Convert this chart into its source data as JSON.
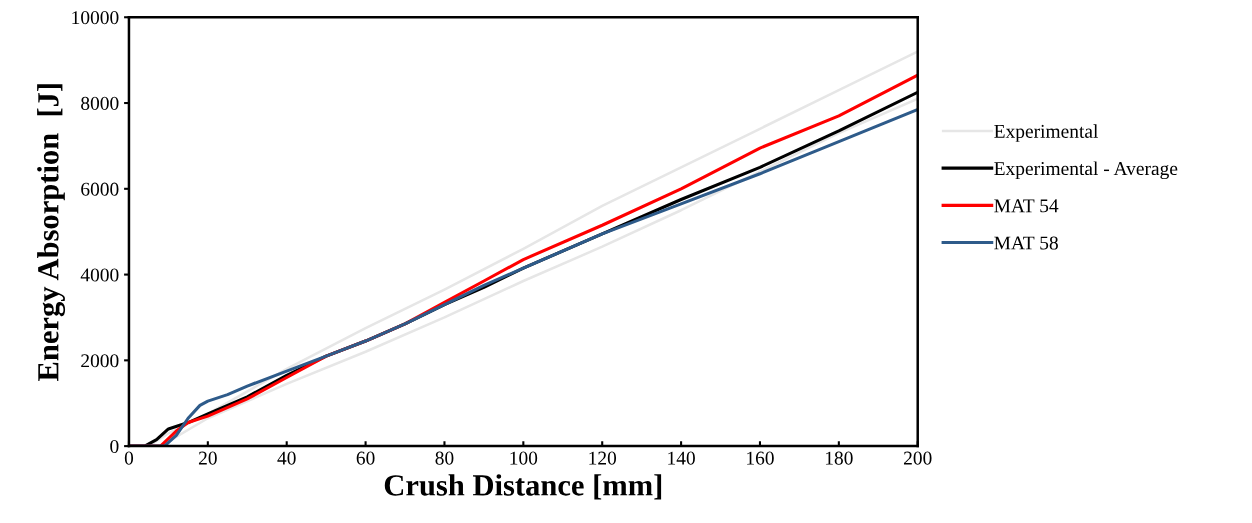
{
  "chart_data": {
    "type": "line",
    "xlabel": "Crush Distance [mm]",
    "ylabel": "Energy Absorption  [J]",
    "xlim": [
      0,
      200
    ],
    "xticks": [
      0,
      20,
      40,
      60,
      80,
      100,
      120,
      140,
      160,
      180,
      200
    ],
    "ylim": [
      0,
      10000
    ],
    "yticks": [
      0,
      2000,
      4000,
      6000,
      8000,
      10000
    ],
    "grid": false,
    "legend": "right",
    "line_style": "solid",
    "marker": "none",
    "series": [
      {
        "name": "Experimental",
        "color": "#e6e6e6",
        "x": [
          0,
          5,
          10,
          20,
          40,
          60,
          80,
          100,
          120,
          140,
          160,
          180,
          200
        ],
        "values": [
          0,
          0,
          300,
          750,
          1800,
          2750,
          3650,
          4600,
          5600,
          6500,
          7400,
          8300,
          9200
        ]
      },
      {
        "color": "#e6e6e6",
        "x": [
          0,
          8,
          20,
          40,
          60,
          80,
          100,
          120,
          140,
          160,
          180,
          200
        ],
        "values": [
          0,
          0,
          650,
          1450,
          2200,
          3000,
          3850,
          4650,
          5500,
          6400,
          7300,
          8100
        ]
      },
      {
        "name": "Experimental - Average",
        "color": "#000000",
        "x": [
          0,
          4,
          7,
          10,
          15,
          20,
          30,
          40,
          50,
          60,
          70,
          80,
          90,
          100,
          120,
          140,
          160,
          180,
          200
        ],
        "values": [
          0,
          0,
          150,
          400,
          550,
          750,
          1150,
          1650,
          2100,
          2450,
          2850,
          3300,
          3700,
          4150,
          4950,
          5750,
          6500,
          7350,
          8250
        ]
      },
      {
        "name": "MAT 54",
        "color": "#ff0000",
        "x": [
          0,
          8,
          12,
          15,
          20,
          30,
          40,
          50,
          60,
          70,
          80,
          90,
          100,
          120,
          140,
          160,
          180,
          200
        ],
        "values": [
          0,
          0,
          350,
          550,
          700,
          1100,
          1600,
          2100,
          2450,
          2850,
          3350,
          3850,
          4350,
          5150,
          6000,
          6950,
          7700,
          8650
        ]
      },
      {
        "name": "MAT 58",
        "color": "#2e5b8a",
        "x": [
          0,
          9,
          12,
          15,
          18,
          20,
          25,
          30,
          40,
          50,
          60,
          70,
          80,
          90,
          100,
          120,
          140,
          160,
          180,
          200
        ],
        "values": [
          0,
          0,
          250,
          650,
          950,
          1050,
          1200,
          1400,
          1750,
          2100,
          2450,
          2850,
          3300,
          3750,
          4150,
          4950,
          5650,
          6350,
          7100,
          7850
        ]
      }
    ]
  }
}
